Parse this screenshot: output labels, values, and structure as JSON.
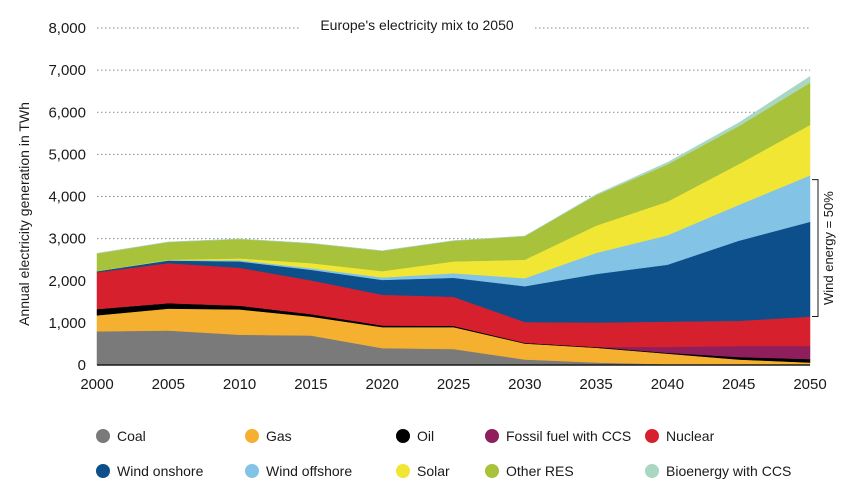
{
  "chart_data": {
    "type": "area",
    "stacked": true,
    "title": "Europe's electricity mix to 2050",
    "ylabel": "Annual electricity generation in TWh",
    "xlabel": "",
    "ylim": [
      0,
      8000
    ],
    "yticks": [
      0,
      1000,
      2000,
      3000,
      4000,
      5000,
      6000,
      7000,
      8000
    ],
    "ytick_labels": [
      "0",
      "1,000",
      "2,000",
      "3,000",
      "4,000",
      "5,000",
      "6,000",
      "7,000",
      "8,000"
    ],
    "x": [
      2000,
      2005,
      2010,
      2015,
      2020,
      2025,
      2030,
      2035,
      2040,
      2045,
      2050
    ],
    "x_labels": [
      "2000",
      "2005",
      "2010",
      "2015",
      "2020",
      "2025",
      "2030",
      "2035",
      "2040",
      "2045",
      "2050"
    ],
    "grid": "horizontal dotted",
    "legend_position": "bottom",
    "annotation": {
      "text": "Wind energy = 50%",
      "range": [
        1150,
        4400
      ]
    },
    "series": [
      {
        "name": "Coal",
        "color": "#7a7a7a",
        "values": [
          800,
          820,
          720,
          700,
          400,
          380,
          130,
          60,
          20,
          10,
          0
        ]
      },
      {
        "name": "Gas",
        "color": "#f4b02e",
        "values": [
          380,
          520,
          600,
          450,
          500,
          520,
          380,
          350,
          250,
          120,
          60
        ]
      },
      {
        "name": "Oil",
        "color": "#000000",
        "values": [
          150,
          130,
          90,
          60,
          40,
          30,
          20,
          20,
          20,
          60,
          80
        ]
      },
      {
        "name": "Fossil fuel with CCS",
        "color": "#8e1f5c",
        "values": [
          0,
          0,
          0,
          0,
          0,
          0,
          0,
          0,
          140,
          260,
          310
        ]
      },
      {
        "name": "Nuclear",
        "color": "#d7202e",
        "values": [
          870,
          950,
          900,
          800,
          730,
          690,
          490,
          580,
          600,
          600,
          700
        ]
      },
      {
        "name": "Wind onshore",
        "color": "#0c4f8a",
        "values": [
          30,
          60,
          150,
          250,
          350,
          450,
          850,
          1150,
          1350,
          1900,
          2250
        ]
      },
      {
        "name": "Wind offshore",
        "color": "#82c3e6",
        "values": [
          0,
          10,
          30,
          40,
          60,
          110,
          190,
          500,
          700,
          850,
          1100
        ]
      },
      {
        "name": "Solar",
        "color": "#f2e634",
        "values": [
          0,
          10,
          40,
          120,
          150,
          280,
          440,
          650,
          800,
          970,
          1200
        ]
      },
      {
        "name": "Other RES",
        "color": "#a8c23c",
        "values": [
          420,
          420,
          460,
          470,
          480,
          490,
          560,
          720,
          880,
          900,
          1000
        ]
      },
      {
        "name": "Bioenergy with CCS",
        "color": "#a9d7c2",
        "values": [
          0,
          0,
          0,
          0,
          0,
          0,
          0,
          20,
          50,
          80,
          150
        ]
      }
    ]
  }
}
